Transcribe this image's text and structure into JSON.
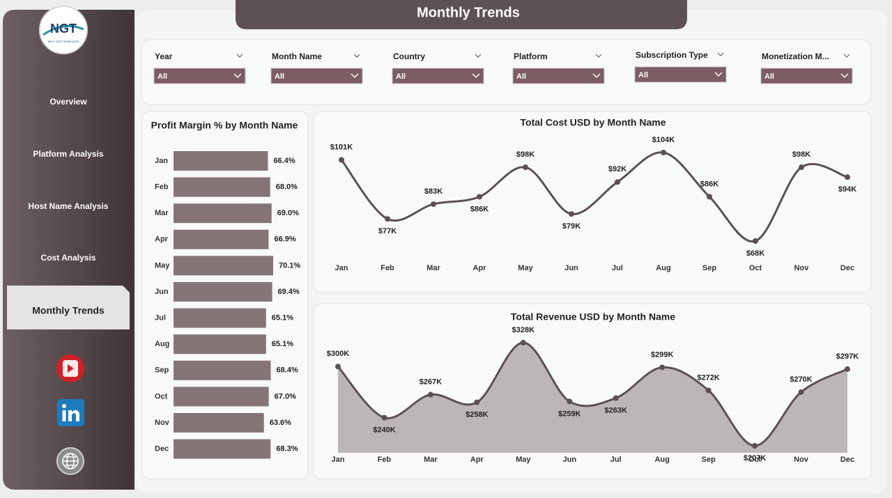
{
  "header": {
    "title": "Monthly Trends"
  },
  "logo": {
    "text": "NGT",
    "subtext": "NEXT GEN TEMPLATES"
  },
  "sidebar": {
    "items": [
      "Overview",
      "Platform Analysis",
      "Host Name Analysis",
      "Cost Analysis",
      "Monthly Trends"
    ]
  },
  "filters": [
    {
      "label": "Year",
      "value": "All"
    },
    {
      "label": "Month Name",
      "value": "All"
    },
    {
      "label": "Country",
      "value": "All"
    },
    {
      "label": "Platform",
      "value": "All"
    },
    {
      "label": "Subscription Type",
      "value": "All"
    },
    {
      "label": "Monetization M...",
      "value": "All"
    }
  ],
  "chart_data": [
    {
      "type": "bar",
      "orientation": "horizontal",
      "title": "Profit Margin % by Month Name",
      "categories": [
        "Jan",
        "Feb",
        "Mar",
        "Apr",
        "May",
        "Jun",
        "Jul",
        "Aug",
        "Sep",
        "Oct",
        "Nov",
        "Dec"
      ],
      "values": [
        66.4,
        68.0,
        69.0,
        66.9,
        70.1,
        69.4,
        65.1,
        65.1,
        68.4,
        67.0,
        63.6,
        68.3
      ],
      "value_labels": [
        "66.4%",
        "68.0%",
        "69.0%",
        "66.9%",
        "70.1%",
        "69.4%",
        "65.1%",
        "65.1%",
        "68.4%",
        "67.0%",
        "63.6%",
        "68.3%"
      ],
      "color": "#857576"
    },
    {
      "type": "line",
      "title": "Total Cost USD by Month Name",
      "categories": [
        "Jan",
        "Feb",
        "Mar",
        "Apr",
        "May",
        "Jun",
        "Jul",
        "Aug",
        "Sep",
        "Oct",
        "Nov",
        "Dec"
      ],
      "values": [
        101000,
        77000,
        83000,
        86000,
        98000,
        79000,
        92000,
        104000,
        86000,
        68000,
        98000,
        94000
      ],
      "value_labels": [
        "$101K",
        "$77K",
        "$83K",
        "$86K",
        "$98K",
        "$79K",
        "$92K",
        "$104K",
        "$86K",
        "$68K",
        "$98K",
        "$94K"
      ],
      "color": "#5d5052"
    },
    {
      "type": "area",
      "title": "Total Revenue USD by Month Name",
      "categories": [
        "Jan",
        "Feb",
        "Mar",
        "Apr",
        "May",
        "Jun",
        "Jul",
        "Aug",
        "Sep",
        "Oct",
        "Nov",
        "Dec"
      ],
      "values": [
        300000,
        240000,
        267000,
        258000,
        328000,
        259000,
        263000,
        299000,
        272000,
        207000,
        270000,
        297000
      ],
      "value_labels": [
        "$300K",
        "$240K",
        "$267K",
        "$258K",
        "$328K",
        "$259K",
        "$263K",
        "$299K",
        "$272K",
        "$207K",
        "$270K",
        "$297K"
      ],
      "color": "#5d5052",
      "fill": "#bcb6b7"
    }
  ]
}
